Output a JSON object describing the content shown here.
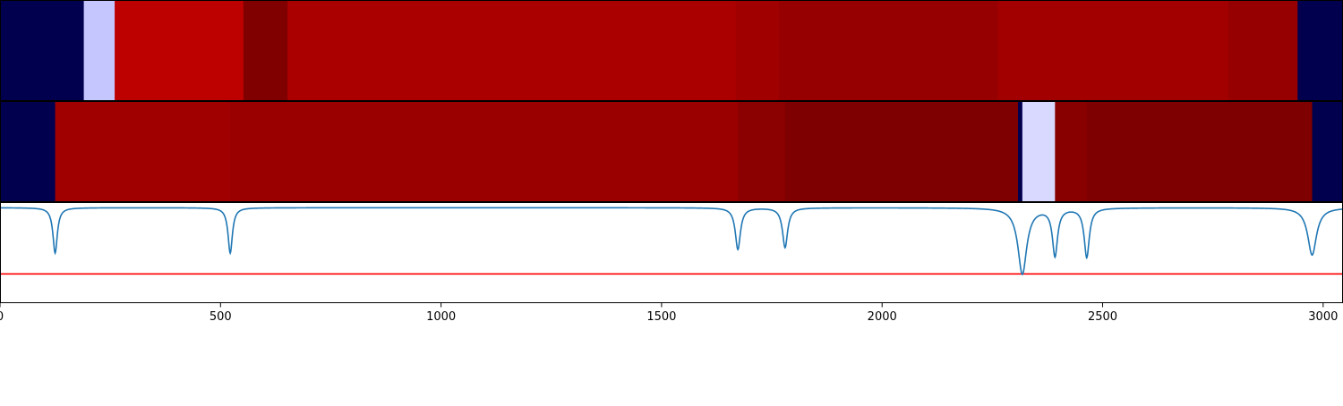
{
  "chart_data": [
    {
      "type": "heatmap",
      "name": "top-band",
      "x_range": [
        0,
        3045
      ],
      "segments": [
        {
          "start": 0,
          "end": 190,
          "color": "#00004f"
        },
        {
          "start": 190,
          "end": 260,
          "color": "#c6c6ff"
        },
        {
          "start": 260,
          "end": 552,
          "color": "#bd0000"
        },
        {
          "start": 552,
          "end": 652,
          "color": "#800000"
        },
        {
          "start": 652,
          "end": 1668,
          "color": "#ab0000"
        },
        {
          "start": 1668,
          "end": 1766,
          "color": "#a00000"
        },
        {
          "start": 1766,
          "end": 2262,
          "color": "#960000"
        },
        {
          "start": 2262,
          "end": 2784,
          "color": "#a20000"
        },
        {
          "start": 2784,
          "end": 2942,
          "color": "#970000"
        },
        {
          "start": 2942,
          "end": 3045,
          "color": "#00004f"
        }
      ]
    },
    {
      "type": "heatmap",
      "name": "middle-band",
      "x_range": [
        0,
        3045
      ],
      "segments": [
        {
          "start": 0,
          "end": 125,
          "color": "#00004f"
        },
        {
          "start": 125,
          "end": 522,
          "color": "#a00000"
        },
        {
          "start": 522,
          "end": 1673,
          "color": "#9a0000"
        },
        {
          "start": 1673,
          "end": 1780,
          "color": "#8b0000"
        },
        {
          "start": 1780,
          "end": 2308,
          "color": "#7f0000"
        },
        {
          "start": 2308,
          "end": 2318,
          "color": "#00004f"
        },
        {
          "start": 2318,
          "end": 2392,
          "color": "#d9d9ff"
        },
        {
          "start": 2392,
          "end": 2464,
          "color": "#890000"
        },
        {
          "start": 2464,
          "end": 2975,
          "color": "#7f0000"
        },
        {
          "start": 2975,
          "end": 3045,
          "color": "#00004f"
        }
      ]
    },
    {
      "type": "line",
      "name": "dip-signal",
      "x_range": [
        0,
        3045
      ],
      "y_range": [
        -1.0,
        0.05
      ],
      "baseline": 0.0,
      "threshold": -0.7,
      "line_color": "#1f77b4",
      "threshold_color": "#ff0000",
      "dips": [
        {
          "x": 125,
          "depth": -0.48,
          "width": 6
        },
        {
          "x": 522,
          "depth": -0.48,
          "width": 6
        },
        {
          "x": 1673,
          "depth": -0.44,
          "width": 7
        },
        {
          "x": 1780,
          "depth": -0.42,
          "width": 7
        },
        {
          "x": 2318,
          "depth": -0.7,
          "width": 12
        },
        {
          "x": 2392,
          "depth": -0.5,
          "width": 7
        },
        {
          "x": 2464,
          "depth": -0.52,
          "width": 7
        },
        {
          "x": 2975,
          "depth": -0.5,
          "width": 12
        }
      ],
      "x_ticks": [
        0,
        500,
        1000,
        1500,
        2000,
        2500,
        3000
      ],
      "x_tick_labels": [
        "0",
        "500",
        "1000",
        "1500",
        "2000",
        "2500",
        "3000"
      ]
    }
  ]
}
